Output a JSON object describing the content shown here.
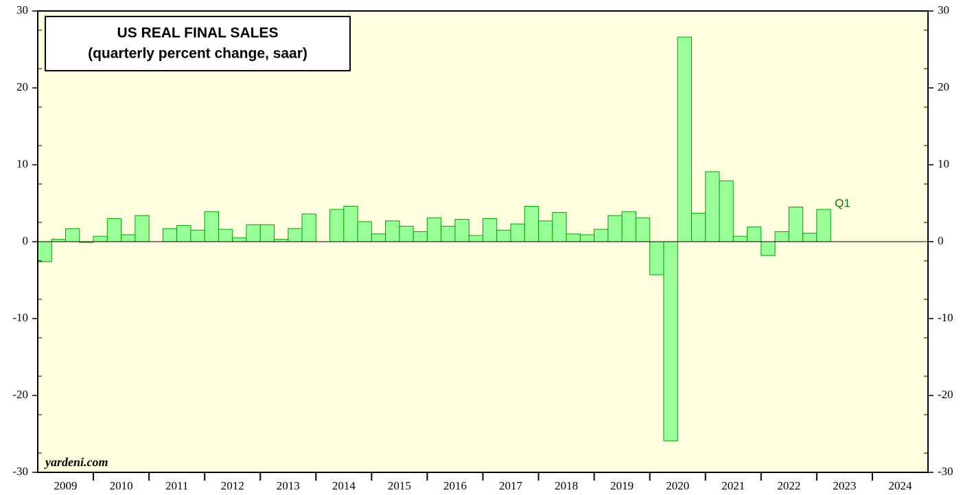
{
  "chart_data": {
    "type": "bar",
    "title": "US REAL FINAL SALES",
    "subtitle": "(quarterly percent change, saar)",
    "source": "yardeni.com",
    "annotation": "Q1",
    "categories": [
      null,
      null,
      null,
      null,
      null,
      null,
      null,
      null,
      null,
      null,
      null,
      null,
      null,
      null,
      null,
      null,
      null,
      null,
      null,
      null,
      null,
      null,
      null,
      null,
      null,
      null,
      null,
      null,
      null,
      null,
      null,
      null,
      null,
      null,
      null,
      null,
      null,
      null,
      null,
      null,
      null,
      null,
      null,
      null,
      null,
      null,
      null,
      null,
      null,
      null,
      null,
      null,
      null,
      null,
      null,
      null,
      null
    ],
    "values": [
      -2.6,
      0.3,
      1.7,
      -0.1,
      0.7,
      3.0,
      0.9,
      3.4,
      0,
      1.7,
      2.1,
      1.5,
      3.9,
      1.6,
      0.5,
      2.2,
      2.2,
      0.3,
      1.7,
      3.6,
      0,
      4.2,
      4.6,
      2.6,
      1.0,
      2.7,
      2.0,
      1.3,
      3.1,
      2.0,
      2.9,
      0.8,
      3.0,
      1.5,
      2.3,
      4.6,
      2.7,
      3.8,
      1.0,
      0.9,
      1.6,
      3.4,
      3.9,
      3.1,
      -4.3,
      -25.9,
      26.6,
      3.7,
      9.1,
      7.9,
      0.7,
      1.9,
      -1.8,
      1.3,
      4.5,
      1.1,
      4.2
    ],
    "year_labels": [
      "2009",
      "2010",
      "2011",
      "2012",
      "2013",
      "2014",
      "2015",
      "2016",
      "2017",
      "2018",
      "2019",
      "2020",
      "2021",
      "2022",
      "2023",
      "2024"
    ],
    "color": "#99ff99",
    "edge_color": "#00a000",
    "ylim": [
      -30,
      30
    ],
    "yticks": [
      -30,
      -20,
      -10,
      0,
      10,
      20,
      30
    ]
  }
}
